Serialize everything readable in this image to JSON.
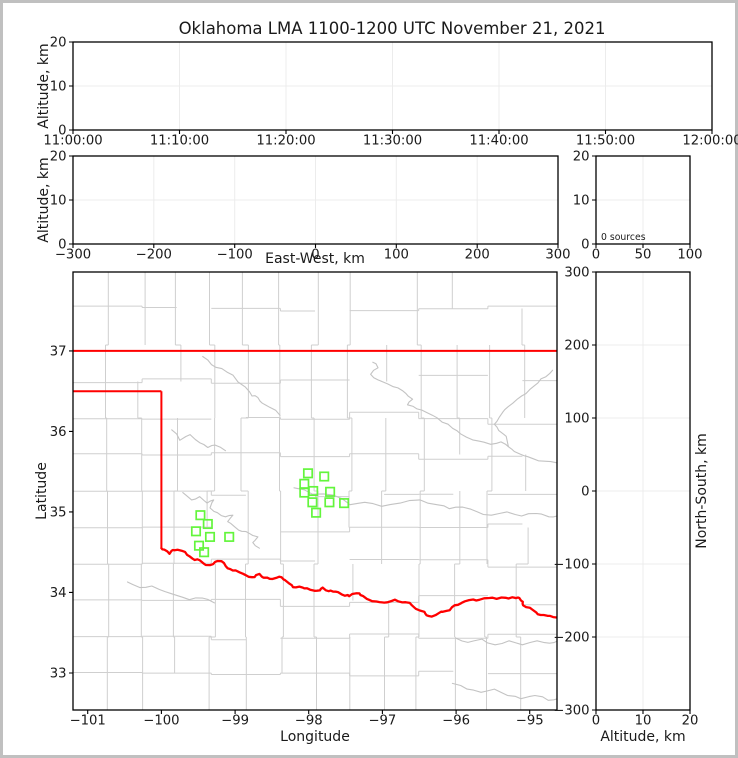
{
  "chart_data": {
    "type": "scatter",
    "figure_kind": "LMA multi-panel XLMA-style display",
    "title": "Oklahoma LMA 1100-1200 UTC November 21, 2021",
    "n_sources": 0,
    "colors": {
      "background": "#ffffff",
      "frame_border": "#c0c0c0",
      "axis": "#000000",
      "grid": "#ececec",
      "county_line": "#cfcfcf",
      "river_gray": "#c3c3c3",
      "state_border_red": "#ff0000",
      "station_green": "#63f53c"
    },
    "panels": {
      "time_height": {
        "xlim": [
          0,
          3600
        ],
        "xticks": [
          0,
          600,
          1200,
          1800,
          2400,
          3000,
          3600
        ],
        "xtick_labels": [
          "11:00:00",
          "11:10:00",
          "11:20:00",
          "11:30:00",
          "11:40:00",
          "11:50:00",
          "12:00:00"
        ],
        "xgrid": [
          600,
          1200,
          1800,
          2400,
          3000
        ],
        "ylim": [
          0,
          20
        ],
        "yticks": [
          0,
          10,
          20
        ],
        "ytick_labels": [
          "0",
          "10",
          "20"
        ],
        "ygrid": [
          10
        ],
        "ylabel": "Altitude, km",
        "series": [
          {
            "name": "vhf-sources",
            "points": []
          }
        ]
      },
      "ew_height": {
        "xlim": [
          -300,
          300
        ],
        "xticks": [
          -300,
          -200,
          -100,
          0,
          100,
          200,
          300
        ],
        "xtick_labels": [
          "−300",
          "−200",
          "−100",
          "0",
          "100",
          "200",
          "300"
        ],
        "xgrid": [
          -200,
          -100,
          0,
          100,
          200
        ],
        "xlabel": "East-West, km",
        "ylim": [
          0,
          20
        ],
        "yticks": [
          0,
          10,
          20
        ],
        "ytick_labels": [
          "0",
          "10",
          "20"
        ],
        "ygrid": [
          10
        ],
        "ylabel": "Altitude, km",
        "series": [
          {
            "name": "vhf-sources",
            "points": []
          }
        ]
      },
      "histogram": {
        "xlim": [
          0,
          100
        ],
        "xticks": [
          0,
          50,
          100
        ],
        "xtick_labels": [
          "0",
          "50",
          "100"
        ],
        "xgrid": [
          50
        ],
        "ylim": [
          0,
          20
        ],
        "yticks": [
          0,
          10,
          20
        ],
        "ytick_labels": [
          "0",
          "10",
          "20"
        ],
        "ygrid": [
          10
        ],
        "annotation": "0 sources",
        "values": []
      },
      "map": {
        "xlim": [
          -101.2,
          -94.63
        ],
        "xticks": [
          -101,
          -100,
          -99,
          -98,
          -97,
          -96,
          -95
        ],
        "xtick_labels": [
          "−101",
          "−100",
          "−99",
          "−98",
          "−97",
          "−96",
          "−95"
        ],
        "xgrid": [],
        "xlabel": "Longitude",
        "ylim": [
          32.54,
          37.98
        ],
        "yticks": [
          33,
          34,
          35,
          36,
          37
        ],
        "ytick_labels": [
          "33",
          "34",
          "35",
          "36",
          "37"
        ],
        "ygrid": [],
        "ylabel": "Latitude",
        "series": [
          {
            "name": "vhf-sources",
            "points": []
          }
        ]
      },
      "ns_height": {
        "xlim": [
          0,
          20
        ],
        "xticks": [
          0,
          10,
          20
        ],
        "xtick_labels": [
          "0",
          "10",
          "20"
        ],
        "xgrid": [
          10
        ],
        "xlabel": "Altitude, km",
        "ylim": [
          -300,
          300
        ],
        "yticks": [
          -300,
          -200,
          -100,
          0,
          100,
          200,
          300
        ],
        "ytick_labels": [
          "−300",
          "−200",
          "−100",
          "0",
          "100",
          "200",
          "300"
        ],
        "ygrid": [
          -200,
          -100,
          0,
          100,
          200
        ],
        "ylabel": "North-South, km",
        "series": [
          {
            "name": "vhf-sources",
            "points": []
          }
        ]
      }
    },
    "stations_lon_lat": [
      [
        -99.47,
        34.96
      ],
      [
        -99.37,
        34.85
      ],
      [
        -99.53,
        34.76
      ],
      [
        -99.34,
        34.69
      ],
      [
        -99.08,
        34.69
      ],
      [
        -99.49,
        34.58
      ],
      [
        -99.42,
        34.5
      ],
      [
        -98.01,
        35.48
      ],
      [
        -97.79,
        35.44
      ],
      [
        -98.06,
        35.35
      ],
      [
        -97.94,
        35.26
      ],
      [
        -98.06,
        35.24
      ],
      [
        -97.71,
        35.25
      ],
      [
        -97.95,
        35.12
      ],
      [
        -97.72,
        35.12
      ],
      [
        -97.52,
        35.11
      ],
      [
        -97.9,
        34.99
      ]
    ],
    "oklahoma_border": [
      [
        [
          -101.25,
          37.0
        ],
        [
          -94.58,
          37.0
        ]
      ],
      [
        [
          -94.615,
          37.0
        ],
        [
          -94.615,
          35.8
        ]
      ],
      [
        [
          -101.25,
          36.5
        ],
        [
          -100.0,
          36.5
        ]
      ],
      [
        [
          -100.0,
          36.5
        ],
        [
          -100.0,
          34.55
        ]
      ]
    ],
    "red_river": [
      [
        -100.0,
        34.55
      ],
      [
        -99.89,
        34.48
      ],
      [
        -99.78,
        34.53
      ],
      [
        -99.62,
        34.45
      ],
      [
        -99.48,
        34.4
      ],
      [
        -99.34,
        34.34
      ],
      [
        -99.24,
        34.39
      ],
      [
        -99.1,
        34.3
      ],
      [
        -98.94,
        34.25
      ],
      [
        -98.77,
        34.19
      ],
      [
        -98.67,
        34.23
      ],
      [
        -98.53,
        34.17
      ],
      [
        -98.37,
        34.19
      ],
      [
        -98.23,
        34.09
      ],
      [
        -98.08,
        34.06
      ],
      [
        -97.92,
        34.02
      ],
      [
        -97.81,
        34.06
      ],
      [
        -97.67,
        34.01
      ],
      [
        -97.51,
        33.96
      ],
      [
        -97.35,
        33.99
      ],
      [
        -97.21,
        33.92
      ],
      [
        -97.04,
        33.88
      ],
      [
        -96.83,
        33.91
      ],
      [
        -96.63,
        33.87
      ],
      [
        -96.43,
        33.76
      ],
      [
        -96.33,
        33.7
      ],
      [
        -96.18,
        33.76
      ],
      [
        -96.02,
        33.84
      ],
      [
        -95.88,
        33.89
      ],
      [
        -95.68,
        33.91
      ],
      [
        -95.45,
        33.92
      ],
      [
        -95.24,
        33.94
      ],
      [
        -95.14,
        33.93
      ],
      [
        -95.09,
        33.84
      ],
      [
        -94.91,
        33.75
      ],
      [
        -94.76,
        33.71
      ],
      [
        -94.6,
        33.67
      ]
    ],
    "gray_rivers": [
      [
        [
          -99.44,
          36.93
        ],
        [
          -99.32,
          36.83
        ],
        [
          -99.18,
          36.78
        ],
        [
          -99.03,
          36.7
        ],
        [
          -98.86,
          36.55
        ],
        [
          -98.77,
          36.44
        ],
        [
          -98.69,
          36.42
        ],
        [
          -98.63,
          36.35
        ],
        [
          -98.53,
          36.3
        ],
        [
          -98.39,
          36.2
        ]
      ],
      [
        [
          -99.86,
          36.02
        ],
        [
          -99.75,
          35.89
        ],
        [
          -99.61,
          35.96
        ],
        [
          -99.48,
          35.86
        ],
        [
          -99.37,
          35.8
        ],
        [
          -99.27,
          35.83
        ],
        [
          -99.13,
          35.76
        ]
      ],
      [
        [
          -97.13,
          36.86
        ],
        [
          -97.06,
          36.79
        ],
        [
          -97.16,
          36.71
        ],
        [
          -97.06,
          36.64
        ],
        [
          -96.93,
          36.59
        ],
        [
          -96.79,
          36.54
        ],
        [
          -96.68,
          36.47
        ],
        [
          -96.59,
          36.4
        ],
        [
          -96.66,
          36.33
        ],
        [
          -96.53,
          36.28
        ],
        [
          -96.41,
          36.24
        ],
        [
          -96.26,
          36.17
        ],
        [
          -96.11,
          36.09
        ],
        [
          -95.99,
          36.01
        ],
        [
          -95.86,
          35.93
        ],
        [
          -95.69,
          35.88
        ],
        [
          -95.53,
          35.84
        ],
        [
          -95.39,
          35.87
        ],
        [
          -95.29,
          35.81
        ]
      ],
      [
        [
          -94.69,
          36.76
        ],
        [
          -94.78,
          36.68
        ],
        [
          -94.89,
          36.6
        ],
        [
          -95.0,
          36.52
        ],
        [
          -95.11,
          36.44
        ],
        [
          -95.23,
          36.35
        ],
        [
          -95.34,
          36.27
        ],
        [
          -95.41,
          36.18
        ],
        [
          -95.48,
          36.09
        ],
        [
          -95.42,
          36.01
        ],
        [
          -95.32,
          35.94
        ],
        [
          -95.29,
          35.81
        ],
        [
          -95.21,
          35.75
        ],
        [
          -95.08,
          35.7
        ],
        [
          -94.95,
          35.66
        ],
        [
          -94.8,
          35.63
        ],
        [
          -94.63,
          35.61
        ]
      ],
      [
        [
          -98.2,
          35.3
        ],
        [
          -97.95,
          35.22
        ],
        [
          -97.67,
          35.21
        ],
        [
          -97.44,
          35.09
        ],
        [
          -97.24,
          35.12
        ],
        [
          -97.01,
          35.07
        ],
        [
          -96.76,
          35.11
        ],
        [
          -96.49,
          35.15
        ],
        [
          -96.26,
          35.09
        ],
        [
          -96.09,
          35.04
        ],
        [
          -95.91,
          35.06
        ],
        [
          -95.71,
          35.0
        ],
        [
          -95.52,
          34.96
        ],
        [
          -95.31,
          35.0
        ],
        [
          -95.11,
          34.95
        ],
        [
          -94.91,
          34.98
        ],
        [
          -94.74,
          34.94
        ],
        [
          -94.63,
          34.95
        ]
      ],
      [
        [
          -99.71,
          35.24
        ],
        [
          -99.59,
          35.15
        ],
        [
          -99.48,
          35.19
        ],
        [
          -99.38,
          35.11
        ],
        [
          -99.29,
          35.15
        ],
        [
          -99.34,
          35.05
        ],
        [
          -99.24,
          34.99
        ],
        [
          -99.13,
          34.94
        ],
        [
          -99.03,
          34.96
        ],
        [
          -99.1,
          34.88
        ],
        [
          -99.0,
          34.81
        ],
        [
          -98.91,
          34.76
        ],
        [
          -98.8,
          34.73
        ],
        [
          -98.69,
          34.69
        ],
        [
          -98.76,
          34.62
        ],
        [
          -98.67,
          34.55
        ]
      ],
      [
        [
          -100.46,
          34.13
        ],
        [
          -100.29,
          34.06
        ],
        [
          -100.13,
          34.08
        ],
        [
          -99.95,
          34.01
        ],
        [
          -99.78,
          33.96
        ],
        [
          -99.62,
          33.91
        ],
        [
          -99.44,
          33.93
        ],
        [
          -99.28,
          33.87
        ]
      ],
      [
        [
          -96.0,
          33.43
        ],
        [
          -95.84,
          33.38
        ],
        [
          -95.65,
          33.42
        ],
        [
          -95.47,
          33.35
        ],
        [
          -95.28,
          33.4
        ],
        [
          -95.1,
          33.35
        ],
        [
          -94.9,
          33.4
        ],
        [
          -94.73,
          33.37
        ],
        [
          -94.62,
          33.4
        ]
      ],
      [
        [
          -96.05,
          32.87
        ],
        [
          -95.85,
          32.8
        ],
        [
          -95.66,
          32.76
        ],
        [
          -95.48,
          32.8
        ],
        [
          -95.3,
          32.72
        ],
        [
          -95.12,
          32.68
        ],
        [
          -94.93,
          32.72
        ],
        [
          -94.75,
          32.66
        ],
        [
          -94.62,
          32.68
        ]
      ]
    ]
  }
}
